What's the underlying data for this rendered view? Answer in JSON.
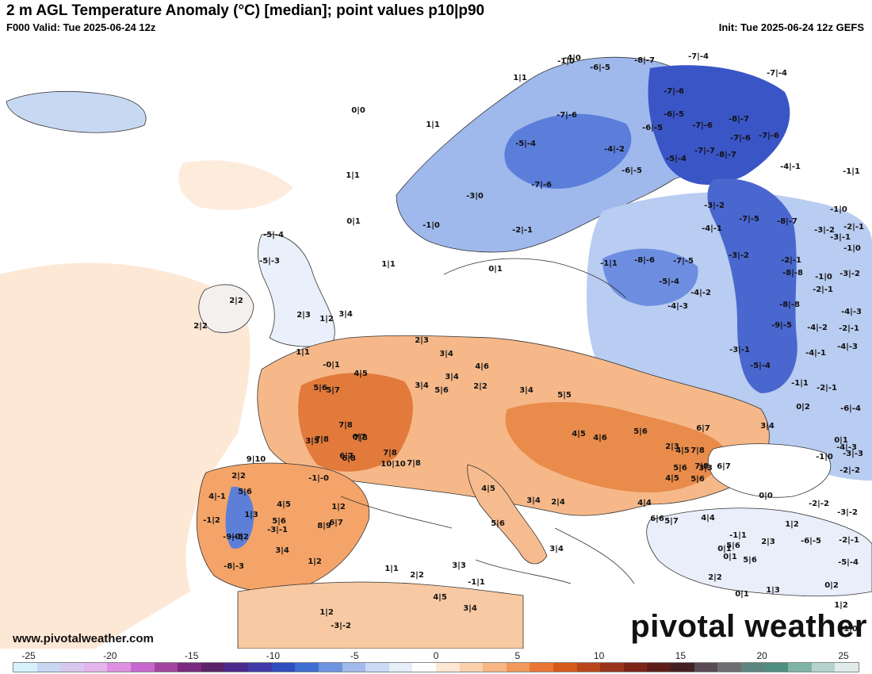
{
  "header": {
    "title": "2 m AGL Temperature Anomaly (°C) [median]; point values p10|p90",
    "valid": "F000 Valid: Tue 2025-06-24 12z",
    "init": "Init: Tue 2025-06-24 12z GEFS"
  },
  "footer": {
    "website": "www.pivotalweather.com",
    "brand": "pivotal weather"
  },
  "colorbar": {
    "tick_labels": [
      "-25",
      "-20",
      "-15",
      "-10",
      "-5",
      "0",
      "5",
      "10",
      "15",
      "20",
      "25"
    ],
    "range": [
      -25,
      25
    ],
    "colors": [
      "#d6f3fb",
      "#c7d7f2",
      "#d8c7ee",
      "#e4b4ec",
      "#df8fe2",
      "#c768cf",
      "#a4449f",
      "#7a2a80",
      "#5a2369",
      "#4b2a8e",
      "#3f3aa8",
      "#2f4dbf",
      "#3e6ed2",
      "#6e93e0",
      "#a2b9ec",
      "#cad9f4",
      "#e6eefa",
      "#ffffff",
      "#fde7d3",
      "#fbd1ad",
      "#f7b682",
      "#f2985a",
      "#e97634",
      "#d65a1c",
      "#b9461a",
      "#99341a",
      "#7c2517",
      "#5e1d19",
      "#452022",
      "#5a4a55",
      "#6e6e70",
      "#5d8580",
      "#4e8f82",
      "#7fb3a6",
      "#b3d3cc",
      "#e0ece9"
    ]
  },
  "map": {
    "point_values": [
      "0|0",
      "1|1",
      "1|1",
      "0|1",
      "1|1",
      "2|2",
      "-5|-4",
      "-5|-3",
      "-4|0",
      "1|1",
      "-1|0",
      "-6|-5",
      "-8|-7",
      "-7|-4",
      "-7|-4",
      "-7|-6",
      "-7|-6",
      "-6|-5",
      "-5|-4",
      "-6|-5",
      "-7|-6",
      "-7|-6",
      "-7|-6",
      "-3|0",
      "-1|0",
      "-2|-1",
      "-4|-2",
      "-6|-5",
      "-5|-4",
      "-7|-7",
      "-8|-7",
      "-8|-7",
      "-7|-6",
      "-4|-1",
      "-1|1",
      "-1|0",
      "-3|-2",
      "-2|-1",
      "-1|0",
      "0|1",
      "-7|-5",
      "-8|-7",
      "-3|-2",
      "-4|-1",
      "-1|1",
      "-8|-6",
      "-7|-5",
      "-5|-4",
      "-4|-3",
      "-4|-2",
      "-3|-2",
      "-2|-1",
      "-8|-8",
      "-8|-8",
      "-9|-5",
      "-4|-2",
      "-3|-2",
      "-4|-3",
      "-2|-1",
      "-3|-1",
      "-1|0",
      "-2|-1",
      "-3|-1",
      "-4|-3",
      "-5|-4",
      "-4|-1",
      "-1|1",
      "-2|-1",
      "-6|-4",
      "-4|-3",
      "-2|-2",
      "-3|-3",
      "0|2",
      "3|4",
      "-1|0",
      "0|1",
      "2|2",
      "3|4",
      "2|3",
      "1|1",
      "-0|1",
      "1|2",
      "2|3",
      "3|4",
      "4|5",
      "5|6",
      "5|7",
      "7|8",
      "6|7",
      "3|5",
      "7|8",
      "7|8",
      "7|8",
      "6|8",
      "9|10",
      "6|7",
      "10|10",
      "7|8",
      "5|6",
      "4|6",
      "3|4",
      "3|4",
      "2|2",
      "3|4",
      "5|5",
      "4|5",
      "4|6",
      "5|6",
      "2|3",
      "4|5",
      "5|6",
      "7|8",
      "6|7",
      "6|7",
      "7|8",
      "4|5",
      "5|6",
      "3|3",
      "2|2",
      "5|6",
      "4|-1",
      "-1|2",
      "1|3",
      "-0|2",
      "-9|-5",
      "-8|-3",
      "-3|-1",
      "-1|-0",
      "4|5",
      "6|7",
      "8|9",
      "1|2",
      "5|6",
      "3|4",
      "1|2",
      "4|5",
      "5|6",
      "3|4",
      "2|4",
      "3|4",
      "4|4",
      "6|6",
      "5|7",
      "4|4",
      "5|6",
      "0|1",
      "-1|1",
      "0|0",
      "-2|-2",
      "-2|-1",
      "-5|-4",
      "-6|-5",
      "-3|-2",
      "1|2",
      "2|3",
      "5|6",
      "0|1",
      "2|2",
      "0|1",
      "1|3",
      "0|2",
      "1|2",
      "-1|0",
      "-1|1",
      "4|5",
      "3|4",
      "1|1",
      "3|3",
      "2|2",
      "1|2",
      "-3|-2"
    ]
  }
}
